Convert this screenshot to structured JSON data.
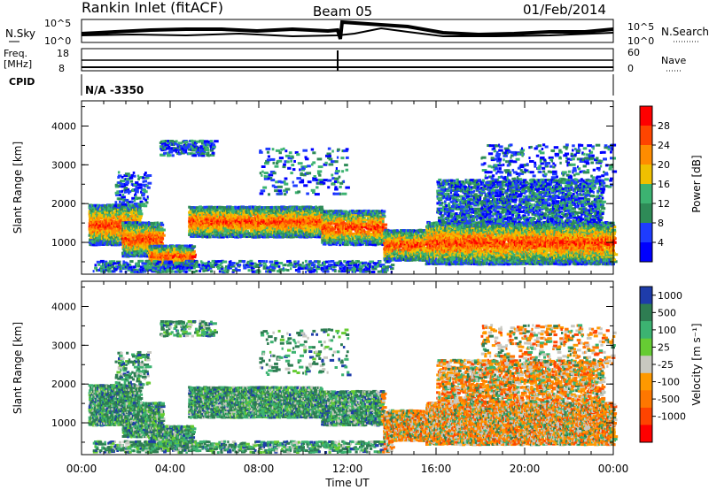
{
  "header": {
    "title": "Rankin Inlet (fitACF)",
    "beam": "Beam 05",
    "date": "01/Feb/2014"
  },
  "noise_panel": {
    "left_label": "N.Sky",
    "right_label": "N.Search",
    "left_ticks": [
      "10^5",
      "10^0"
    ],
    "right_ticks": [
      "10^5",
      "10^0"
    ]
  },
  "freq_panel": {
    "left_label_top": "Freq.",
    "left_label_unit": "[MHz]",
    "left_ticks": [
      "18",
      "8"
    ],
    "right_label": "Nave",
    "right_ticks": [
      "60",
      "0"
    ]
  },
  "cpid": {
    "label": "CPID",
    "value": "N/A -3350"
  },
  "chart_data": [
    {
      "type": "heatmap",
      "name": "power",
      "ylabel": "Slant Range [km]",
      "yticks": [
        "1000",
        "2000",
        "3000",
        "4000"
      ],
      "ylim": [
        180,
        4650
      ],
      "xlim_hours": [
        0,
        24
      ],
      "colorbar_label": "Power [dB]",
      "colorbar_ticks": [
        "28",
        "24",
        "20",
        "16",
        "12",
        "8",
        "4"
      ],
      "colorbar_colors": [
        "#ff0000",
        "#ff4500",
        "#ff8c00",
        "#f0c000",
        "#3cb371",
        "#2e8b57",
        "#1e3cff",
        "#0000ff"
      ]
    },
    {
      "type": "heatmap",
      "name": "velocity",
      "ylabel": "Slant Range [km]",
      "yticks": [
        "1000",
        "2000",
        "3000",
        "4000"
      ],
      "ylim": [
        180,
        4650
      ],
      "xlim_hours": [
        0,
        24
      ],
      "colorbar_label": "Velocity [m s⁻¹]",
      "colorbar_ticks": [
        "1000",
        "500",
        "100",
        "25",
        "-25",
        "-100",
        "-500",
        "-1000"
      ],
      "colorbar_colors": [
        "#1e3caa",
        "#2e7d52",
        "#3cb371",
        "#66cc33",
        "#c8c8c0",
        "#ff9900",
        "#ff7700",
        "#ff4400",
        "#ff0000"
      ]
    }
  ],
  "xaxis": {
    "ticks": [
      "00:00",
      "04:00",
      "08:00",
      "12:00",
      "16:00",
      "20:00",
      "00:00"
    ],
    "label": "Time UT"
  }
}
